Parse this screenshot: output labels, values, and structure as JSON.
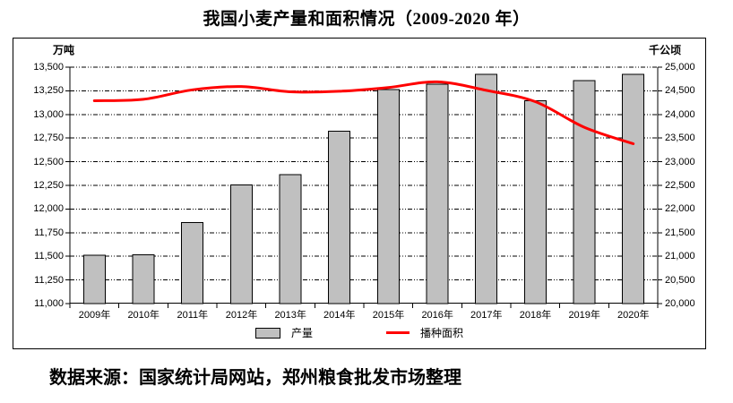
{
  "title": "我国小麦产量和面积情况（2009-2020 年）",
  "source_note": "数据来源：国家统计局网站，郑州粮食批发市场整理",
  "axes": {
    "left_unit": "万吨",
    "right_unit": "千公顷"
  },
  "legend": {
    "bar_label": "产量",
    "line_label": "播种面积"
  },
  "colors": {
    "bar_fill": "#c0c0c0",
    "bar_border": "#000000",
    "line": "#ff0000",
    "grid": "#000000",
    "text": "#000000",
    "background": "#ffffff"
  },
  "chart_data": {
    "type": "bar",
    "subtype": "combo-bar-line-dual-axis",
    "title": "我国小麦产量和面积情况（2009-2020 年）",
    "categories": [
      "2009年",
      "2010年",
      "2011年",
      "2012年",
      "2013年",
      "2014年",
      "2015年",
      "2016年",
      "2017年",
      "2018年",
      "2019年",
      "2020年"
    ],
    "series": [
      {
        "name": "产量",
        "type": "bar",
        "axis": "left",
        "unit": "万吨",
        "color": "#c0c0c0",
        "values": [
          11512,
          11518,
          11858,
          12254,
          12364,
          12821,
          13264,
          13319,
          13424,
          13144,
          13360,
          13425
        ]
      },
      {
        "name": "播种面积",
        "type": "line",
        "axis": "right",
        "unit": "千公顷",
        "color": "#ff0000",
        "smoothed": true,
        "values": [
          24290,
          24320,
          24520,
          24590,
          24480,
          24490,
          24570,
          24690,
          24510,
          24270,
          23730,
          23380
        ]
      }
    ],
    "left_axis": {
      "label": "万吨",
      "min": 11000,
      "max": 13500,
      "step": 250
    },
    "right_axis": {
      "label": "千公顷",
      "min": 20000,
      "max": 25000,
      "step": 500
    },
    "grid": "horizontal dash-dot",
    "legend_position": "bottom"
  }
}
